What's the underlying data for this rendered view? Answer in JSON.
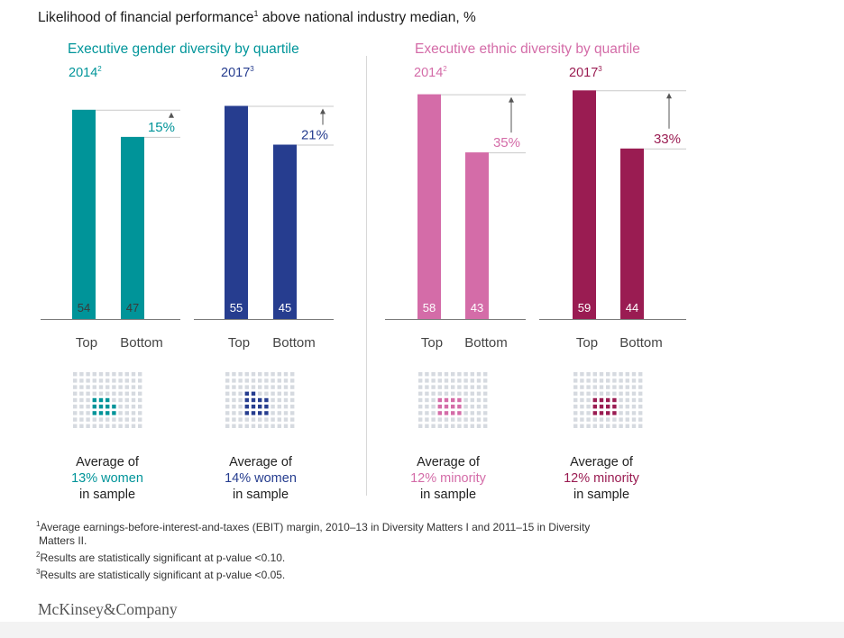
{
  "title_main": "Likelihood of financial performance",
  "title_sup": "1",
  "title_rest": " above national industry median, %",
  "sections": [
    {
      "title": "Executive gender diversity by quartile",
      "color": "#00959a"
    },
    {
      "title": "Executive ethnic diversity by quartile",
      "color": "#d46ca8"
    }
  ],
  "panels": [
    {
      "year": "2014",
      "sup": "2",
      "color": "#009499",
      "uplift": "15%",
      "top_label": "Top",
      "bottom_label": "Bottom",
      "caption_pre": "Average of",
      "caption_highlight": "13% women",
      "caption_post": "in sample"
    },
    {
      "year": "2017",
      "sup": "3",
      "color": "#263d8f",
      "uplift": "21%",
      "top_label": "Top",
      "bottom_label": "Bottom",
      "caption_pre": "Average of",
      "caption_highlight": "14% women",
      "caption_post": "in sample"
    },
    {
      "year": "2014",
      "sup": "2",
      "color": "#d46ca8",
      "uplift": "35%",
      "top_label": "Top",
      "bottom_label": "Bottom",
      "caption_pre": "Average of",
      "caption_highlight": "12% minority",
      "caption_post": "in sample"
    },
    {
      "year": "2017",
      "sup": "3",
      "color": "#9a1c52",
      "uplift": "33%",
      "top_label": "Top",
      "bottom_label": "Bottom",
      "caption_pre": "Average of",
      "caption_highlight": "12% minority",
      "caption_post": "in sample"
    }
  ],
  "chart_data": {
    "type": "bar",
    "ylim": [
      0,
      60
    ],
    "categories": [
      "Top",
      "Bottom"
    ],
    "series": [
      {
        "values": [
          54,
          47
        ]
      },
      {
        "values": [
          55,
          45
        ]
      },
      {
        "values": [
          58,
          43
        ]
      },
      {
        "values": [
          59,
          44
        ]
      }
    ]
  },
  "footnotes": [
    {
      "sup": "1",
      "text": "Average earnings-before-interest-and-taxes (EBIT) margin, 2010–13 in Diversity Matters I and 2011–15 in Diversity"
    },
    {
      "sup": "",
      "text": "Matters II."
    },
    {
      "sup": "2",
      "text": "Results are statistically significant at p-value <0.10."
    },
    {
      "sup": "3",
      "text": "Results are statistically significant at p-value <0.05."
    }
  ],
  "logo": "McKinsey&Company"
}
